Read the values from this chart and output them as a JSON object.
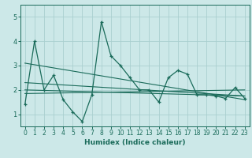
{
  "xlabel": "Humidex (Indice chaleur)",
  "ylabel": "",
  "background_color": "#cce8e8",
  "grid_color": "#aacfcf",
  "line_color": "#1a6b5a",
  "xlim": [
    -0.5,
    23.5
  ],
  "ylim": [
    0.5,
    5.5
  ],
  "xticks": [
    0,
    1,
    2,
    3,
    4,
    5,
    6,
    7,
    8,
    9,
    10,
    11,
    12,
    13,
    14,
    15,
    16,
    17,
    18,
    19,
    20,
    21,
    22,
    23
  ],
  "yticks": [
    1,
    2,
    3,
    4,
    5
  ],
  "series_y": [
    1.4,
    4.0,
    2.0,
    2.6,
    1.6,
    1.1,
    0.7,
    1.8,
    4.8,
    3.4,
    3.0,
    2.5,
    2.0,
    2.0,
    1.5,
    2.5,
    2.8,
    2.65,
    1.8,
    1.8,
    1.75,
    1.65,
    2.1,
    1.65
  ],
  "trend_lines": [
    {
      "start_x": 0,
      "start_y": 2.3,
      "end_x": 23,
      "end_y": 1.75
    },
    {
      "start_x": 0,
      "start_y": 3.1,
      "end_x": 23,
      "end_y": 1.6
    },
    {
      "start_x": 0,
      "start_y": 2.0,
      "end_x": 23,
      "end_y": 1.75
    },
    {
      "start_x": 0,
      "start_y": 1.85,
      "end_x": 23,
      "end_y": 2.0
    }
  ],
  "xlabel_fontsize": 6.5,
  "xlabel_fontweight": "bold",
  "tick_fontsize": 5.5,
  "ytick_fontsize": 6
}
